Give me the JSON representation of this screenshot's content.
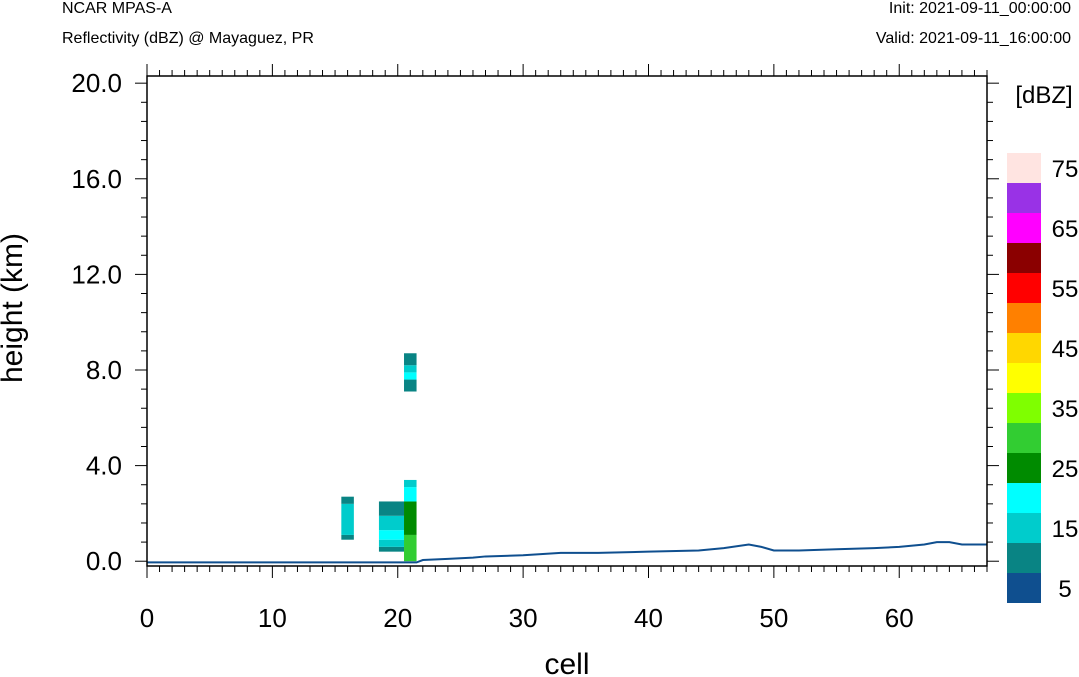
{
  "header": {
    "left_title": "NCAR MPAS-A",
    "left_subtitle": "Reflectivity (dBZ) @ Mayaguez, PR",
    "right_title": "Init: 2021-09-11_00:00:00",
    "right_subtitle": "Valid: 2021-09-11_16:00:00"
  },
  "chart_data": {
    "type": "heatmap",
    "xlabel": "cell",
    "ylabel": "height (km)",
    "xlim": [
      0,
      67
    ],
    "ylim": [
      -0.2,
      20.3
    ],
    "x_ticks": [
      0,
      10,
      20,
      30,
      40,
      50,
      60
    ],
    "x_tick_labels": [
      "0",
      "10",
      "20",
      "30",
      "40",
      "50",
      "60"
    ],
    "y_ticks": [
      0,
      4,
      8,
      12,
      16,
      20
    ],
    "y_tick_labels": [
      "0.0",
      "4.0",
      "8.0",
      "12.0",
      "16.0",
      "20.0"
    ],
    "colorbar": {
      "title": "[dBZ]",
      "levels": [
        0,
        5,
        10,
        15,
        20,
        25,
        30,
        35,
        40,
        45,
        50,
        55,
        60,
        65,
        70,
        75
      ],
      "tick_labels": [
        "5",
        "15",
        "25",
        "35",
        "45",
        "55",
        "65",
        "75"
      ],
      "colors": [
        "#0f4f8f",
        "#098484",
        "#00cccc",
        "#00ffff",
        "#008b00",
        "#32cd32",
        "#7fff00",
        "#ffff00",
        "#ffd700",
        "#ff8000",
        "#ff0000",
        "#8b0000",
        "#ff00ff",
        "#9932e6",
        "#ffe4e1"
      ]
    },
    "cells": [
      {
        "x0": 15.5,
        "x1": 16.5,
        "y0": 0.9,
        "y1": 1.1,
        "dbz": 5
      },
      {
        "x0": 15.5,
        "x1": 16.5,
        "y0": 1.1,
        "y1": 2.4,
        "dbz": 10
      },
      {
        "x0": 15.5,
        "x1": 16.5,
        "y0": 2.4,
        "y1": 2.7,
        "dbz": 5
      },
      {
        "x0": 18.5,
        "x1": 20.5,
        "y0": 0.4,
        "y1": 0.6,
        "dbz": 5
      },
      {
        "x0": 18.5,
        "x1": 20.5,
        "y0": 0.6,
        "y1": 0.9,
        "dbz": 10
      },
      {
        "x0": 18.5,
        "x1": 20.5,
        "y0": 0.9,
        "y1": 1.3,
        "dbz": 15
      },
      {
        "x0": 18.5,
        "x1": 20.5,
        "y0": 1.3,
        "y1": 1.9,
        "dbz": 10
      },
      {
        "x0": 18.5,
        "x1": 20.5,
        "y0": 1.9,
        "y1": 2.5,
        "dbz": 5
      },
      {
        "x0": 20.5,
        "x1": 21.5,
        "y0": 0.0,
        "y1": 1.1,
        "dbz": 25
      },
      {
        "x0": 20.5,
        "x1": 21.5,
        "y0": 1.1,
        "y1": 2.5,
        "dbz": 20
      },
      {
        "x0": 20.5,
        "x1": 21.5,
        "y0": 2.5,
        "y1": 3.1,
        "dbz": 15
      },
      {
        "x0": 20.5,
        "x1": 21.5,
        "y0": 3.1,
        "y1": 3.4,
        "dbz": 10
      },
      {
        "x0": 20.5,
        "x1": 21.5,
        "y0": 7.1,
        "y1": 7.6,
        "dbz": 5
      },
      {
        "x0": 20.5,
        "x1": 21.5,
        "y0": 7.6,
        "y1": 7.9,
        "dbz": 15
      },
      {
        "x0": 20.5,
        "x1": 21.5,
        "y0": 7.9,
        "y1": 8.2,
        "dbz": 10
      },
      {
        "x0": 20.5,
        "x1": 21.5,
        "y0": 8.2,
        "y1": 8.7,
        "dbz": 5
      }
    ],
    "terrain": {
      "x": [
        0,
        21.5,
        22,
        24,
        26,
        27,
        30,
        33,
        36,
        40,
        44,
        46,
        48,
        49,
        50,
        52,
        55,
        58,
        60,
        62,
        63,
        64,
        65,
        67
      ],
      "y": [
        -0.05,
        -0.05,
        0.05,
        0.1,
        0.15,
        0.2,
        0.25,
        0.35,
        0.35,
        0.4,
        0.45,
        0.55,
        0.7,
        0.6,
        0.45,
        0.45,
        0.5,
        0.55,
        0.6,
        0.7,
        0.8,
        0.8,
        0.7,
        0.7
      ]
    }
  }
}
